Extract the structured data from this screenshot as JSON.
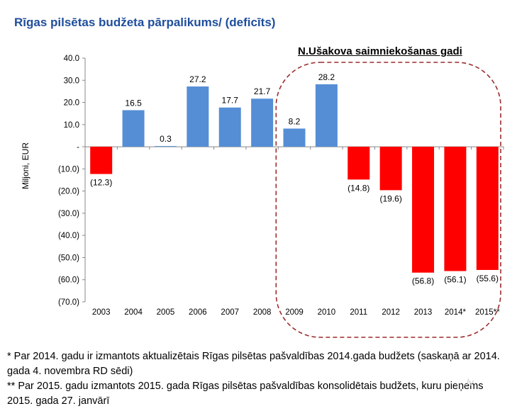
{
  "title": "Rīgas pilsētas budžeta pārpalikums/ (deficīts)",
  "highlight_label": "N.Ušakova saimniekošanas gadi",
  "watermark": "... .lv",
  "notes": [
    "* Par 2014. gadu ir izmantots aktualizētais Rīgas pilsētas pašvaldības 2014.gada budžets (saskaņā ar 2014. gada 4. novembra RD sēdi)",
    "** Par 2015. gadu izmantots 2015. gada Rīgas pilsētas pašvaldības konsolidētais budžets, kuru pieņems 2015. gada 27. janvārī"
  ],
  "colors": {
    "positive": "#558ed5",
    "negative": "#ff0000",
    "title": "#1f4e9c",
    "highlight_border": "#9b2c2c"
  },
  "chart_data": {
    "type": "bar",
    "title": "Rīgas pilsētas budžeta pārpalikums/ (deficīts)",
    "xlabel": "",
    "ylabel": "Miljoni, EUR",
    "ylim": [
      -70,
      40
    ],
    "yticks": [
      40,
      30,
      20,
      10,
      0,
      -10,
      -20,
      -30,
      -40,
      -50,
      -60,
      -70
    ],
    "ytick_labels": [
      "40.0",
      "30.0",
      "20.0",
      "10.0",
      "-",
      "(10.0)",
      "(20.0)",
      "(30.0)",
      "(40.0)",
      "(50.0)",
      "(60.0)",
      "(70.0)"
    ],
    "categories": [
      "2003",
      "2004",
      "2005",
      "2006",
      "2007",
      "2008",
      "2009",
      "2010",
      "2011",
      "2012",
      "2013",
      "2014*",
      "2015**"
    ],
    "values": [
      -12.3,
      16.5,
      0.3,
      27.2,
      17.7,
      21.7,
      8.2,
      28.2,
      -14.8,
      -19.6,
      -56.8,
      -56.1,
      -55.6
    ],
    "value_labels": [
      "(12.3)",
      "16.5",
      "0.3",
      "27.2",
      "17.7",
      "21.7",
      "8.2",
      "28.2",
      "(14.8)",
      "(19.6)",
      "(56.8)",
      "(56.1)",
      "(55.6)"
    ],
    "grid": false,
    "legend": "none",
    "highlight_range": [
      "2009",
      "2015**"
    ]
  }
}
